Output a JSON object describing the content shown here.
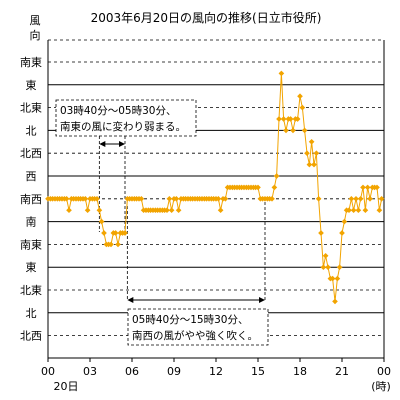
{
  "chart_data": {
    "type": "line",
    "title": "2003年6月20日の風向の推移(日立市役所)",
    "ylabel": "風向",
    "xlabel_unit": "(時)",
    "x_date_label": "20日",
    "x_ticks": [
      "00",
      "03",
      "06",
      "09",
      "12",
      "15",
      "18",
      "21",
      "00"
    ],
    "x_range_hours": [
      0,
      24
    ],
    "y_categories_top_to_bottom": [
      "南東",
      "東",
      "北東",
      "北",
      "北西",
      "西",
      "南西",
      "南",
      "南東",
      "東",
      "北東",
      "北",
      "北西"
    ],
    "y_solid_line_categories": [
      "東",
      "北",
      "西",
      "南",
      "東",
      "北"
    ],
    "line_color": "#f2a400",
    "marker_color": "#f2a400",
    "annotations": [
      {
        "text_line1": "03時40分～05時30分、",
        "text_line2": "南東の風に変わり弱まる。",
        "start_hour": 3.667,
        "end_hour": 5.5
      },
      {
        "text_line1": "05時40分～15時30分、",
        "text_line2": "南西の風がやや強く吹く。",
        "start_hour": 5.667,
        "end_hour": 15.5
      }
    ],
    "series": [
      {
        "points": [
          [
            0.0,
            6
          ],
          [
            0.17,
            6
          ],
          [
            0.33,
            6
          ],
          [
            0.5,
            6
          ],
          [
            0.67,
            6
          ],
          [
            0.83,
            6
          ],
          [
            1.0,
            6
          ],
          [
            1.17,
            6
          ],
          [
            1.33,
            6
          ],
          [
            1.5,
            6.5
          ],
          [
            1.67,
            6
          ],
          [
            1.83,
            6
          ],
          [
            2.0,
            6
          ],
          [
            2.17,
            6
          ],
          [
            2.33,
            6
          ],
          [
            2.5,
            6
          ],
          [
            2.67,
            6
          ],
          [
            2.83,
            6.5
          ],
          [
            3.0,
            6
          ],
          [
            3.17,
            6
          ],
          [
            3.33,
            6
          ],
          [
            3.5,
            6
          ],
          [
            3.67,
            6.5
          ],
          [
            3.83,
            7
          ],
          [
            4.0,
            7.5
          ],
          [
            4.17,
            8
          ],
          [
            4.33,
            8
          ],
          [
            4.5,
            8
          ],
          [
            4.67,
            7.5
          ],
          [
            4.83,
            7.5
          ],
          [
            5.0,
            8
          ],
          [
            5.17,
            7.5
          ],
          [
            5.33,
            7.5
          ],
          [
            5.5,
            7.5
          ],
          [
            5.67,
            6
          ],
          [
            5.83,
            6
          ],
          [
            6.0,
            6
          ],
          [
            6.17,
            6
          ],
          [
            6.33,
            6
          ],
          [
            6.5,
            6
          ],
          [
            6.67,
            6
          ],
          [
            6.83,
            6.5
          ],
          [
            7.0,
            6.5
          ],
          [
            7.17,
            6.5
          ],
          [
            7.33,
            6.5
          ],
          [
            7.5,
            6.5
          ],
          [
            7.67,
            6.5
          ],
          [
            7.83,
            6.5
          ],
          [
            8.0,
            6.5
          ],
          [
            8.17,
            6.5
          ],
          [
            8.33,
            6.5
          ],
          [
            8.5,
            6.5
          ],
          [
            8.67,
            6
          ],
          [
            8.83,
            6.5
          ],
          [
            9.0,
            6
          ],
          [
            9.17,
            6
          ],
          [
            9.33,
            6.5
          ],
          [
            9.5,
            6
          ],
          [
            9.67,
            6
          ],
          [
            9.83,
            6
          ],
          [
            10.0,
            6
          ],
          [
            10.17,
            6
          ],
          [
            10.33,
            6
          ],
          [
            10.5,
            6
          ],
          [
            10.67,
            6
          ],
          [
            10.83,
            6
          ],
          [
            11.0,
            6
          ],
          [
            11.17,
            6
          ],
          [
            11.33,
            6
          ],
          [
            11.5,
            6
          ],
          [
            11.67,
            6
          ],
          [
            11.83,
            6
          ],
          [
            12.0,
            6
          ],
          [
            12.17,
            6
          ],
          [
            12.33,
            6.5
          ],
          [
            12.5,
            6
          ],
          [
            12.67,
            6
          ],
          [
            12.83,
            5.5
          ],
          [
            13.0,
            5.5
          ],
          [
            13.17,
            5.5
          ],
          [
            13.33,
            5.5
          ],
          [
            13.5,
            5.5
          ],
          [
            13.67,
            5.5
          ],
          [
            13.83,
            5.5
          ],
          [
            14.0,
            5.5
          ],
          [
            14.17,
            5.5
          ],
          [
            14.33,
            5.5
          ],
          [
            14.5,
            5.5
          ],
          [
            14.67,
            5.5
          ],
          [
            14.83,
            5.5
          ],
          [
            15.0,
            5.5
          ],
          [
            15.17,
            6
          ],
          [
            15.33,
            6
          ],
          [
            15.5,
            6
          ],
          [
            15.67,
            6
          ],
          [
            15.83,
            6
          ],
          [
            16.0,
            6
          ],
          [
            16.17,
            5.5
          ],
          [
            16.33,
            5
          ],
          [
            16.5,
            2.5
          ],
          [
            16.67,
            0.5
          ],
          [
            16.83,
            2.5
          ],
          [
            17.0,
            3
          ],
          [
            17.17,
            2.5
          ],
          [
            17.33,
            2.5
          ],
          [
            17.5,
            3
          ],
          [
            17.67,
            2.5
          ],
          [
            17.83,
            2.5
          ],
          [
            18.0,
            1.5
          ],
          [
            18.17,
            2
          ],
          [
            18.33,
            3
          ],
          [
            18.5,
            4
          ],
          [
            18.67,
            4.5
          ],
          [
            18.83,
            3.5
          ],
          [
            19.0,
            4.5
          ],
          [
            19.17,
            4
          ],
          [
            19.33,
            6
          ],
          [
            19.5,
            7.5
          ],
          [
            19.67,
            9
          ],
          [
            19.83,
            8.5
          ],
          [
            20.0,
            9
          ],
          [
            20.17,
            9.5
          ],
          [
            20.33,
            9.5
          ],
          [
            20.5,
            10.5
          ],
          [
            20.67,
            9.5
          ],
          [
            20.83,
            9
          ],
          [
            21.0,
            7.5
          ],
          [
            21.17,
            7
          ],
          [
            21.33,
            6.5
          ],
          [
            21.5,
            6.5
          ],
          [
            21.67,
            6
          ],
          [
            21.83,
            6.5
          ],
          [
            22.0,
            6
          ],
          [
            22.17,
            6.5
          ],
          [
            22.33,
            6
          ],
          [
            22.5,
            5.5
          ],
          [
            22.67,
            6.5
          ],
          [
            22.83,
            5.5
          ],
          [
            23.0,
            6
          ],
          [
            23.17,
            5.5
          ],
          [
            23.33,
            5.5
          ],
          [
            23.5,
            5.5
          ],
          [
            23.67,
            6.5
          ],
          [
            23.83,
            6
          ]
        ]
      }
    ]
  }
}
